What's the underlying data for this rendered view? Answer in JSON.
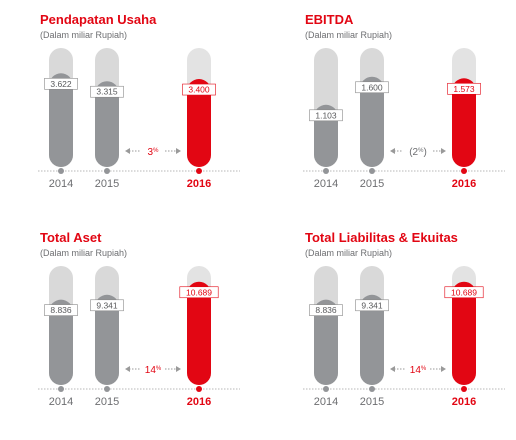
{
  "colors": {
    "accent": "#e20613",
    "bar_gray": "#939598",
    "bar_light": "#d9d9d9",
    "text_gray": "#6d6e71"
  },
  "chart_data": [
    {
      "type": "bar",
      "title": "Pendapatan Usaha",
      "subtitle": "(Dalam miliar Rupiah)",
      "categories": [
        "2014",
        "2015",
        "2016"
      ],
      "values": [
        3622,
        3315,
        3400
      ],
      "value_labels": [
        "3.622",
        "3.315",
        "3.400"
      ],
      "growth_label": "3",
      "growth_unit": "%",
      "ylim": [
        0,
        4600
      ]
    },
    {
      "type": "bar",
      "title": "EBITDA",
      "subtitle": "(Dalam miliar Rupiah)",
      "categories": [
        "2014",
        "2015",
        "2016"
      ],
      "values": [
        1103,
        1600,
        1573
      ],
      "value_labels": [
        "1.103",
        "1.600",
        "1.573"
      ],
      "growth_label": "(2",
      "growth_unit": "%",
      "growth_suffix": ")",
      "ylim": [
        0,
        2110
      ]
    },
    {
      "type": "bar",
      "title": "Total Aset",
      "subtitle": "(Dalam miliar Rupiah)",
      "categories": [
        "2014",
        "2015",
        "2016"
      ],
      "values": [
        8836,
        9341,
        10689
      ],
      "value_labels": [
        "8.836",
        "9.341",
        "10.689"
      ],
      "growth_label": "14",
      "growth_unit": "%",
      "ylim": [
        0,
        12320
      ]
    },
    {
      "type": "bar",
      "title": "Total Liabilitas & Ekuitas",
      "subtitle": "(Dalam miliar Rupiah)",
      "categories": [
        "2014",
        "2015",
        "2016"
      ],
      "values": [
        8836,
        9341,
        10689
      ],
      "value_labels": [
        "8.836",
        "9.341",
        "10.689"
      ],
      "growth_label": "14",
      "growth_unit": "%",
      "ylim": [
        0,
        12320
      ]
    }
  ]
}
